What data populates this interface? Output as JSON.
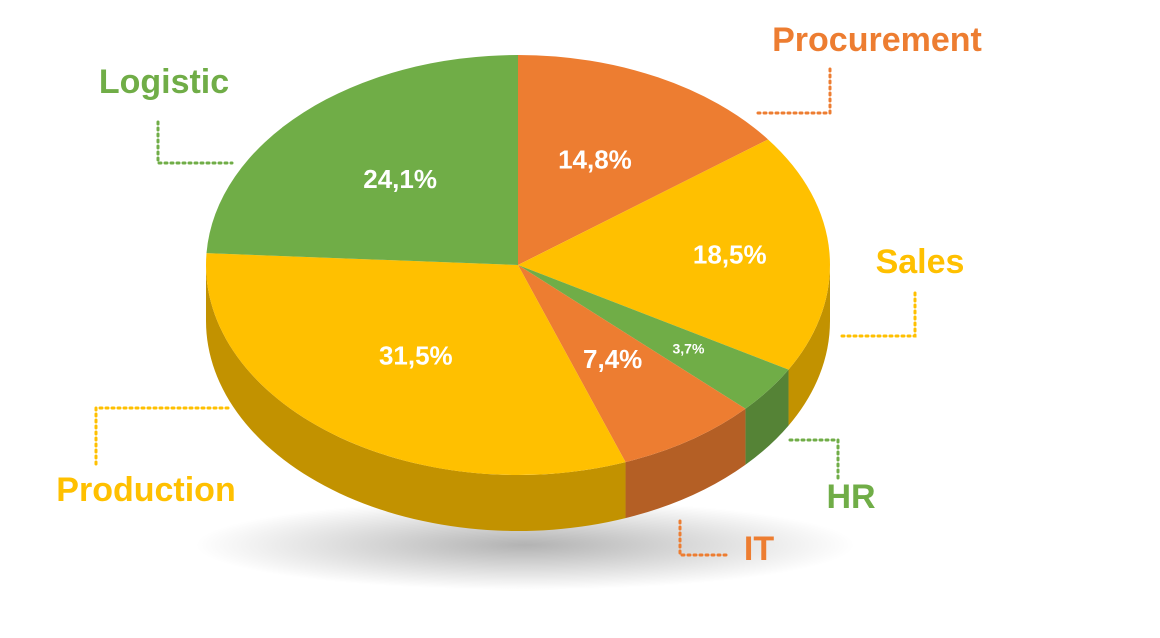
{
  "chart_data": {
    "type": "pie",
    "style": "3d",
    "categories": [
      "Procurement",
      "Sales",
      "HR",
      "IT",
      "Production",
      "Logistic"
    ],
    "values": [
      14.8,
      18.5,
      3.7,
      7.4,
      31.5,
      24.1
    ],
    "value_labels": [
      "14,8%",
      "18,5%",
      "3,7%",
      "7,4%",
      "31,5%",
      "24,1%"
    ],
    "colors": [
      "#ED7D31",
      "#FFC000",
      "#70AD47",
      "#ED7D31",
      "#FFC000",
      "#70AD47"
    ],
    "title": "",
    "legend": "none"
  }
}
